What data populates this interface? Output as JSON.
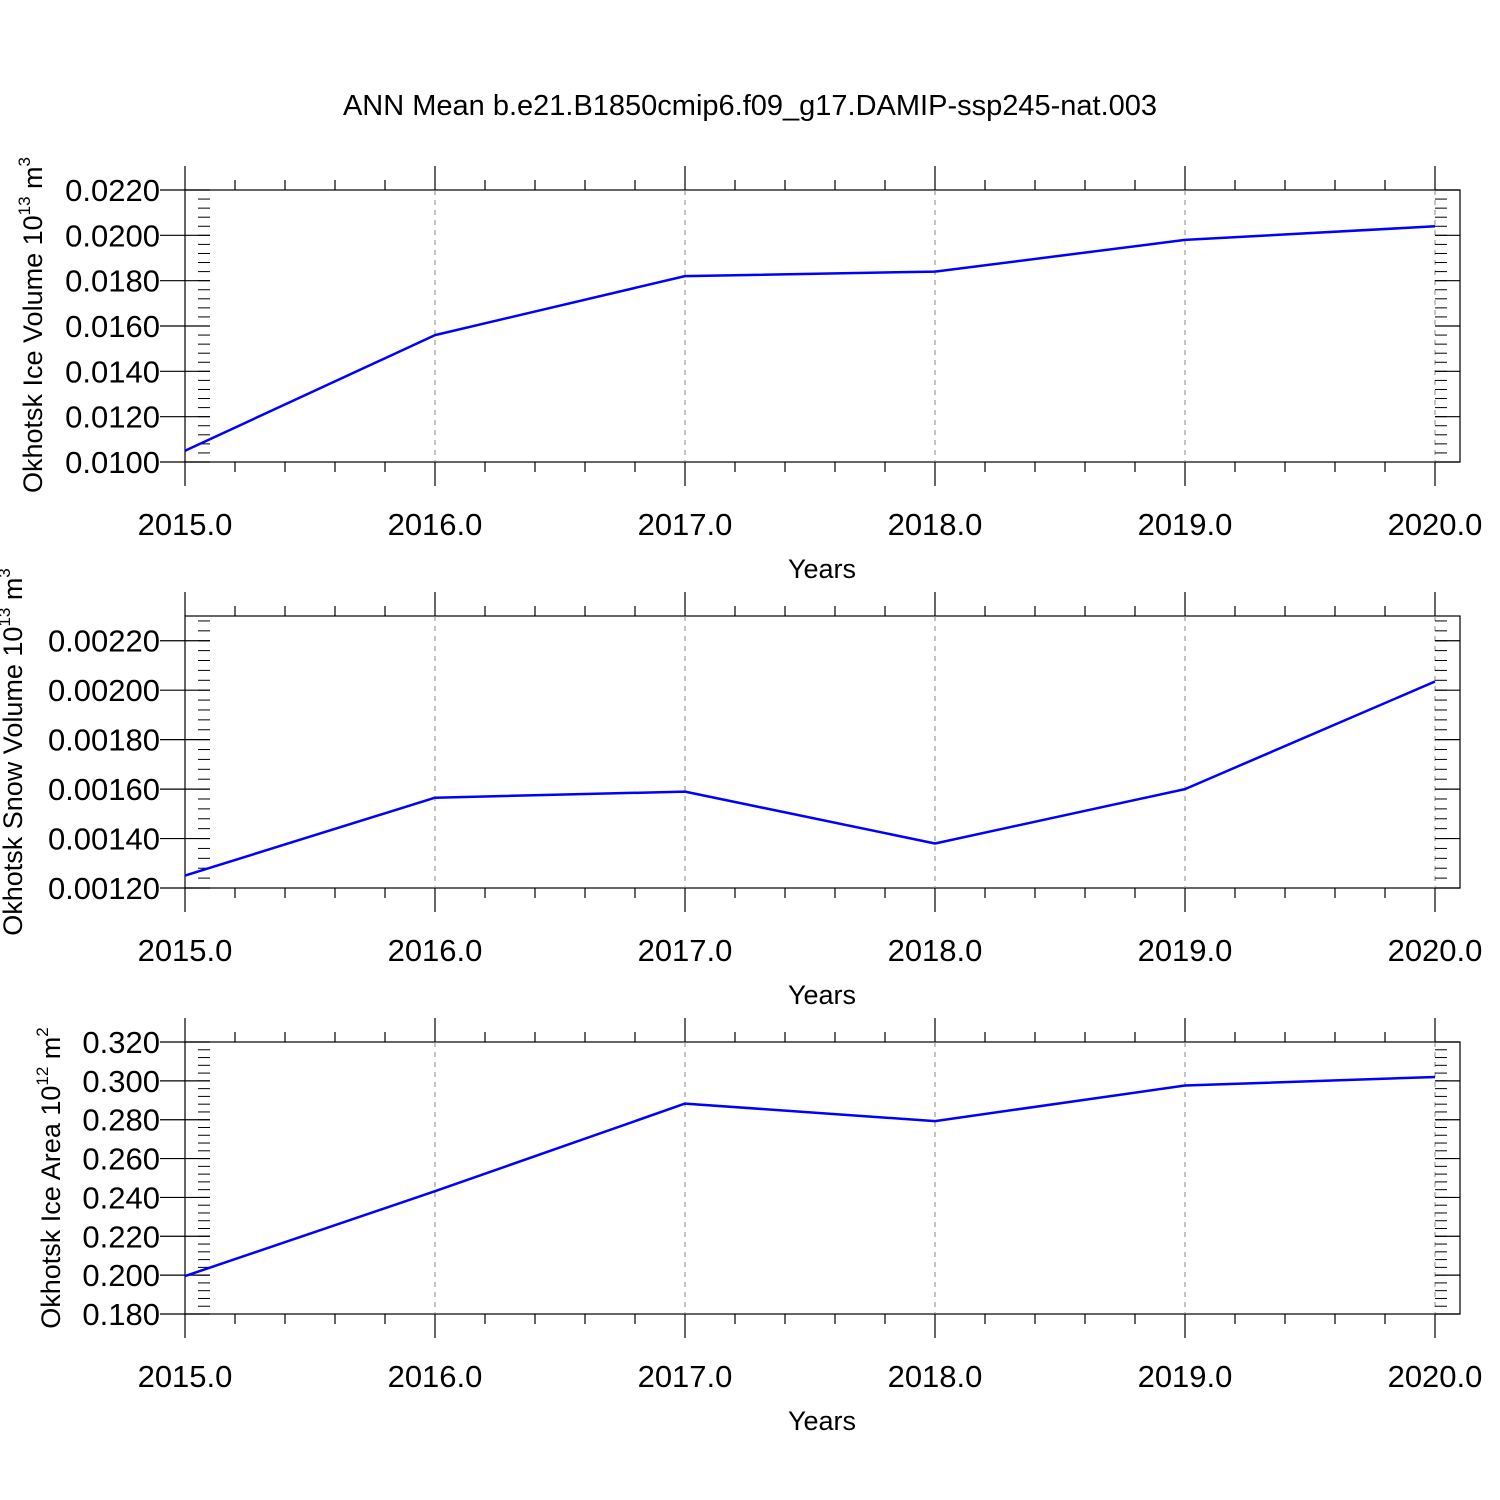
{
  "title": "ANN Mean b.e21.B1850cmip6.f09_g17.DAMIP-ssp245-nat.003",
  "chart_data": [
    {
      "type": "line",
      "ylabel_main": "Okhotsk Ice Volume 10",
      "ylabel_exp": "13",
      "ylabel_unit": "m",
      "ylabel_unit_exp": "3",
      "xlabel": "Years",
      "x": [
        2015,
        2016,
        2017,
        2018,
        2019,
        2020
      ],
      "x_tick_labels": [
        "2015.0",
        "2016.0",
        "2017.0",
        "2018.0",
        "2019.0",
        "2020.0"
      ],
      "xlim": [
        2015,
        2020.1
      ],
      "ylim": [
        0.01,
        0.022
      ],
      "y_ticks": [
        0.01,
        0.012,
        0.014,
        0.016,
        0.018,
        0.02,
        0.022
      ],
      "y_tick_labels": [
        "0.0100",
        "0.0120",
        "0.0140",
        "0.0160",
        "0.0180",
        "0.0200",
        "0.0220"
      ],
      "series": [
        {
          "values": [
            0.0105,
            0.0156,
            0.0182,
            0.0184,
            0.0198,
            0.0204
          ],
          "color": "#0000ff"
        }
      ],
      "grid": "vertical dashed"
    },
    {
      "type": "line",
      "ylabel_main": "Okhotsk Snow Volume 10",
      "ylabel_exp": "13",
      "ylabel_unit": "m",
      "ylabel_unit_exp": "3",
      "xlabel": "Years",
      "x": [
        2015,
        2016,
        2017,
        2018,
        2019,
        2020
      ],
      "x_tick_labels": [
        "2015.0",
        "2016.0",
        "2017.0",
        "2018.0",
        "2019.0",
        "2020.0"
      ],
      "xlim": [
        2015,
        2020.1
      ],
      "ylim": [
        0.0012,
        0.0023
      ],
      "y_ticks": [
        0.0012,
        0.0014,
        0.0016,
        0.0018,
        0.002,
        0.0022
      ],
      "y_tick_labels": [
        "0.00120",
        "0.00140",
        "0.00160",
        "0.00180",
        "0.00200",
        "0.00220"
      ],
      "series": [
        {
          "values": [
            0.00125,
            0.001565,
            0.00159,
            0.00138,
            0.0016,
            0.002035
          ],
          "color": "#0000ff"
        }
      ],
      "grid": "vertical dashed"
    },
    {
      "type": "line",
      "ylabel_main": "Okhotsk Ice Area 10",
      "ylabel_exp": "12",
      "ylabel_unit": "m",
      "ylabel_unit_exp": "2",
      "xlabel": "Years",
      "x": [
        2015,
        2016,
        2017,
        2018,
        2019,
        2020
      ],
      "x_tick_labels": [
        "2015.0",
        "2016.0",
        "2017.0",
        "2018.0",
        "2019.0",
        "2020.0"
      ],
      "xlim": [
        2015,
        2020.1
      ],
      "ylim": [
        0.18,
        0.32
      ],
      "y_ticks": [
        0.18,
        0.2,
        0.22,
        0.24,
        0.26,
        0.28,
        0.3,
        0.32
      ],
      "y_tick_labels": [
        "0.180",
        "0.200",
        "0.220",
        "0.240",
        "0.260",
        "0.280",
        "0.300",
        "0.320"
      ],
      "series": [
        {
          "values": [
            0.1995,
            0.2432,
            0.2883,
            0.2793,
            0.2976,
            0.302
          ],
          "color": "#0000ff"
        }
      ],
      "grid": "vertical dashed"
    }
  ]
}
